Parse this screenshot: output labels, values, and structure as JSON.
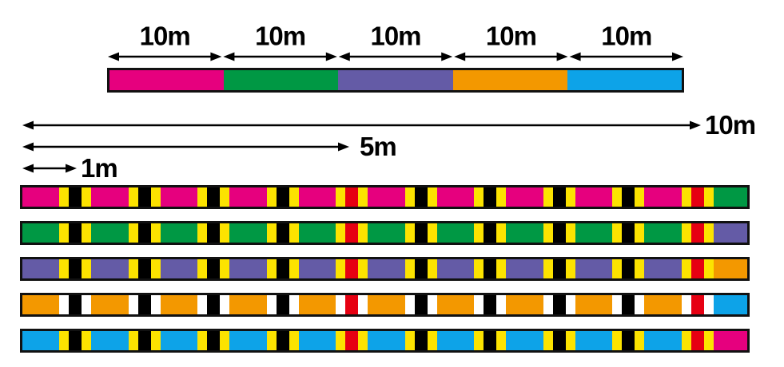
{
  "top_scale": {
    "segments": [
      {
        "name": "pink",
        "label": "10m",
        "color": "#e6007e"
      },
      {
        "name": "green",
        "label": "10m",
        "color": "#009844"
      },
      {
        "name": "purple",
        "label": "10m",
        "color": "#645ba6"
      },
      {
        "name": "orange",
        "label": "10m",
        "color": "#f39800"
      },
      {
        "name": "blue",
        "label": "10m",
        "color": "#0da3e8"
      }
    ]
  },
  "rulers": [
    {
      "name": "ten-meter",
      "label": "10m",
      "length_m": 10
    },
    {
      "name": "five-meter",
      "label": "5m",
      "length_m": 5
    },
    {
      "name": "one-meter",
      "label": "1m",
      "length_m": 1
    }
  ],
  "marking_pattern": {
    "tick_interval_m": 1,
    "tick_structure": [
      "edge",
      "dark",
      "edge"
    ],
    "dark_tick_color": "#000000",
    "special_mark_positions_m": [
      5,
      10
    ],
    "special_mark_color": "#e60012",
    "default_edge_color": "#fce300",
    "bars": [
      {
        "name": "pink-section",
        "base": "#e6007e",
        "next": "#009844",
        "edge": "#fce300"
      },
      {
        "name": "green-section",
        "base": "#009844",
        "next": "#645ba6",
        "edge": "#fce300"
      },
      {
        "name": "purple-section",
        "base": "#645ba6",
        "next": "#f39800",
        "edge": "#fce300"
      },
      {
        "name": "orange-section",
        "base": "#f39800",
        "next": "#0da3e8",
        "edge": "#ffffff"
      },
      {
        "name": "blue-section",
        "base": "#0da3e8",
        "next": "#e6007e",
        "edge": "#fce300"
      }
    ]
  }
}
